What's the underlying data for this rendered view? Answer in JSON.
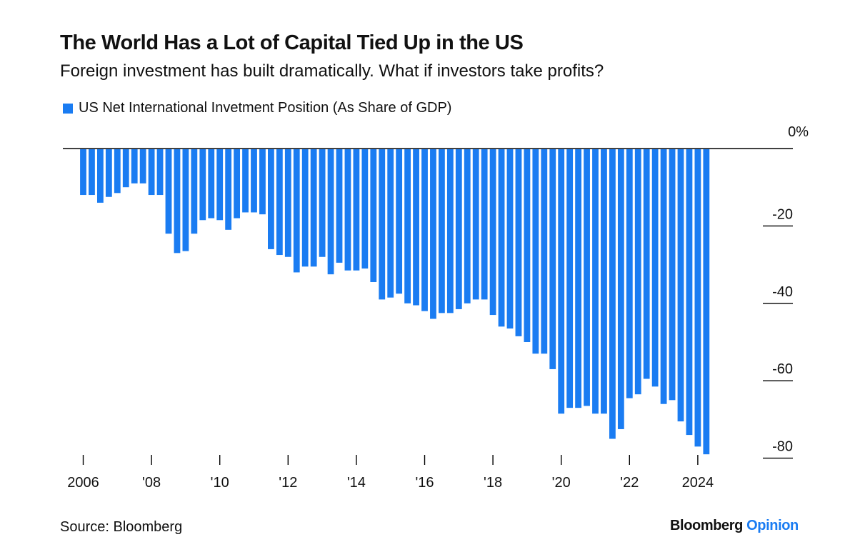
{
  "brand": {
    "name": "Bloomberg",
    "product": "Opinion"
  },
  "colors": {
    "bar": "#1a7cf2",
    "axis": "#000000",
    "brand_accent": "#1a7cf2"
  },
  "source": "Source: Bloomberg",
  "chart_data": {
    "type": "bar",
    "title": "The World Has a Lot of Capital Tied Up in the US",
    "subtitle": "Foreign investment has built dramatically. What if investors take profits?",
    "legend": [
      "US Net International Invetment Position (As Share of GDP)"
    ],
    "series": [
      {
        "name": "US Net International Invetment Position (As Share of GDP)",
        "values": [
          -12,
          -12,
          -14,
          -12.5,
          -11.5,
          -10,
          -9,
          -9,
          -12,
          -12,
          -22,
          -27,
          -26.5,
          -22,
          -18.5,
          -18,
          -18.5,
          -21,
          -18,
          -16.5,
          -16.5,
          -17,
          -26,
          -27.5,
          -28,
          -32,
          -30.5,
          -30.5,
          -28,
          -32.5,
          -29.5,
          -31.5,
          -31.5,
          -31,
          -34.5,
          -39,
          -38.5,
          -37.5,
          -40,
          -40.5,
          -42,
          -44,
          -42.5,
          -42.5,
          -41.5,
          -40,
          -39,
          -39,
          -43,
          -46,
          -46.5,
          -48.5,
          -50,
          -53,
          -53,
          -57,
          -68.5,
          -67,
          -67,
          -66.5,
          -68.5,
          -68.5,
          -75,
          -72.5,
          -64.5,
          -63.5,
          -59.5,
          -61.5,
          -66,
          -65,
          -70.5,
          -74,
          -77,
          -79
        ]
      }
    ],
    "x_tick_labels": [
      "2006",
      "'08",
      "'10",
      "'12",
      "'14",
      "'16",
      "'18",
      "'20",
      "'22",
      "2024"
    ],
    "y_tick_labels": [
      "0%",
      "-20",
      "-40",
      "-60",
      "-80"
    ],
    "y_ticks": [
      0,
      -20,
      -40,
      -60,
      -80
    ],
    "x_range": [
      2006,
      2024
    ],
    "first_period": 2006.0,
    "period_step": 0.25,
    "ylim": [
      -80,
      0
    ],
    "xlabel": "",
    "ylabel": "",
    "grid": false
  }
}
